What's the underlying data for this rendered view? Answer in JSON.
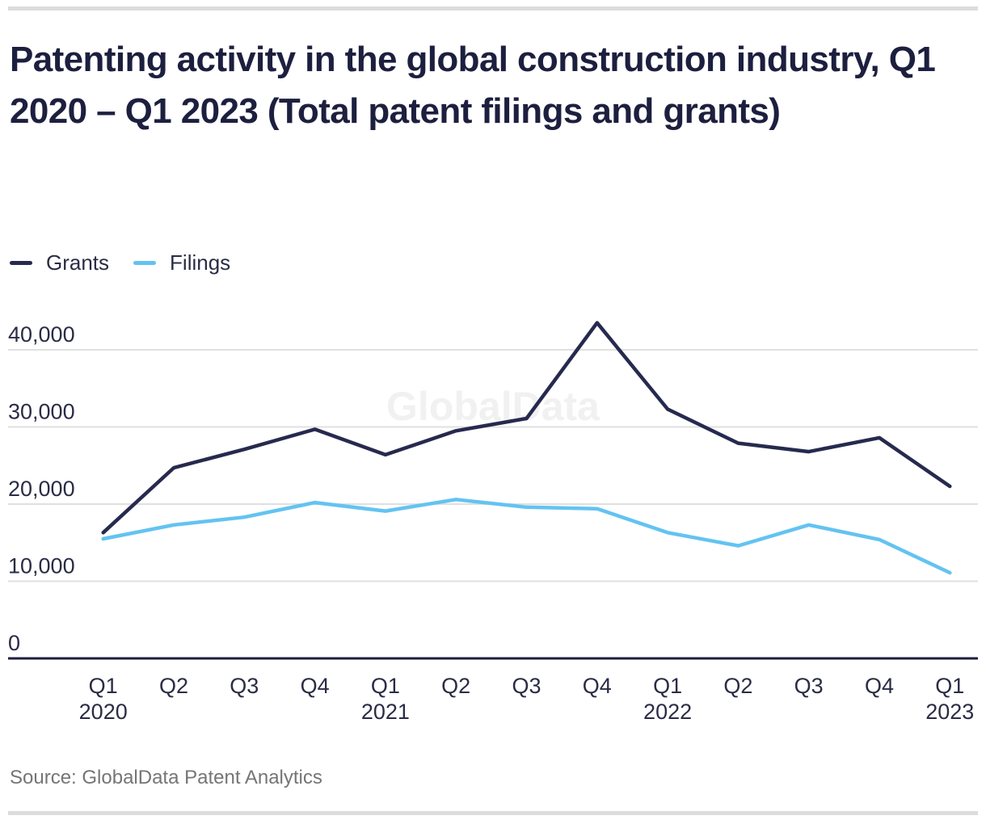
{
  "header": {
    "title": "Patenting activity in the global construction industry, Q1 2020 – Q1 2023 (Total patent filings and grants)"
  },
  "watermark": {
    "text": "GlobalData"
  },
  "footer": {
    "source": "Source: GlobalData Patent Analytics"
  },
  "colors": {
    "grants_line": "#272A4E",
    "filings_line": "#63C3F1",
    "gridline": "#E0E0E0",
    "axis_line": "#1D1F3F",
    "tick_text": "#2A2C45",
    "title_text": "#1D1F3F",
    "source_text": "#757575",
    "divider": "#DCDCDC",
    "watermark_text": "#F1F1F1"
  },
  "chart_data": {
    "type": "line",
    "title": "Patenting activity in the global construction industry, Q1 2020 – Q1 2023 (Total patent filings and grants)",
    "xlabel": "",
    "ylabel": "",
    "ylim": [
      0,
      45000
    ],
    "grid": "horizontal",
    "legend_position": "top-left",
    "categories": [
      "Q1 2020",
      "Q2 2020",
      "Q3 2020",
      "Q4 2020",
      "Q1 2021",
      "Q2 2021",
      "Q3 2021",
      "Q4 2021",
      "Q1 2022",
      "Q2 2022",
      "Q3 2022",
      "Q4 2022",
      "Q1 2023"
    ],
    "x_tick_labels": [
      {
        "quarter": "Q1",
        "year": "2020"
      },
      {
        "quarter": "Q2",
        "year": ""
      },
      {
        "quarter": "Q3",
        "year": ""
      },
      {
        "quarter": "Q4",
        "year": ""
      },
      {
        "quarter": "Q1",
        "year": "2021"
      },
      {
        "quarter": "Q2",
        "year": ""
      },
      {
        "quarter": "Q3",
        "year": ""
      },
      {
        "quarter": "Q4",
        "year": ""
      },
      {
        "quarter": "Q1",
        "year": "2022"
      },
      {
        "quarter": "Q2",
        "year": ""
      },
      {
        "quarter": "Q3",
        "year": ""
      },
      {
        "quarter": "Q4",
        "year": ""
      },
      {
        "quarter": "Q1",
        "year": "2023"
      }
    ],
    "yticks": [
      0,
      10000,
      20000,
      30000,
      40000
    ],
    "ytick_labels": [
      "0",
      "10,000",
      "20,000",
      "30,000",
      "40,000"
    ],
    "series": [
      {
        "name": "Grants",
        "color": "#272A4E",
        "values": [
          16300,
          24700,
          27100,
          29700,
          26400,
          29500,
          31100,
          43500,
          32300,
          27900,
          26800,
          28600,
          22300
        ]
      },
      {
        "name": "Filings",
        "color": "#63C3F1",
        "values": [
          15500,
          17300,
          18300,
          20200,
          19100,
          20600,
          19600,
          19400,
          16300,
          14600,
          17300,
          15400,
          11100
        ]
      }
    ]
  }
}
